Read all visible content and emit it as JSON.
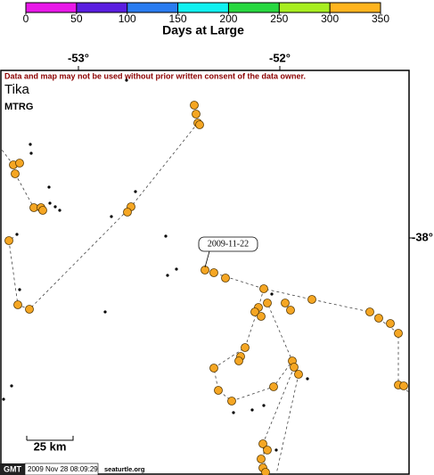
{
  "colorbar": {
    "ticks": [
      0,
      50,
      100,
      150,
      200,
      250,
      300,
      350
    ],
    "colors": [
      "#e818e8",
      "#5a1ee0",
      "#2a7cf0",
      "#10f0f0",
      "#28d840",
      "#a8ee20",
      "#ffb41e"
    ],
    "label": "Days at Large"
  },
  "map": {
    "longitude_labels": [
      "-53°",
      "-52°"
    ],
    "latitude_labels": [
      "-38°"
    ],
    "notice": "Data and map may not be used without prior written consent of the data owner.",
    "title": "Tika",
    "subtitle": "MTRG",
    "date_label": "2009-11-22",
    "scale": "25 km"
  },
  "footer": {
    "logo": "GMT",
    "timestamp": "2009 Nov 28 08:09:29",
    "site": "seaturtle.org"
  }
}
